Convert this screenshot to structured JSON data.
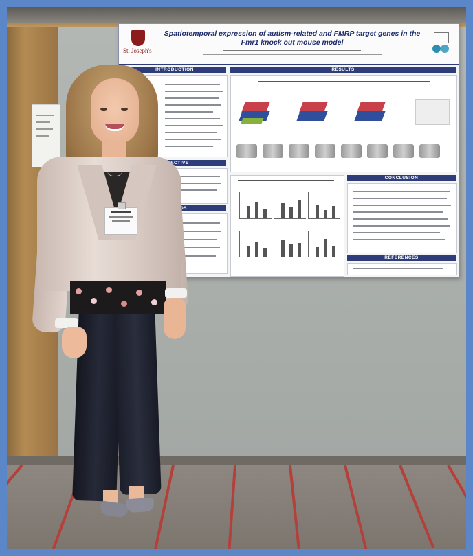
{
  "poster": {
    "title": "Spatiotemporal expression of autism-related and FMRP target genes in the Fmr1 knock out mouse model",
    "logo_text": "St. Joseph's",
    "sections": {
      "intro": "INTRODUCTION",
      "results": "RESULTS",
      "objective": "OBJECTIVE",
      "methods": "METHODS",
      "conclusion": "CONCLUSION",
      "references": "REFERENCES"
    }
  },
  "colors": {
    "frame": "#5b87c8",
    "poster_header": "#2e3d7a",
    "floor_stripe": "#b3403a"
  }
}
